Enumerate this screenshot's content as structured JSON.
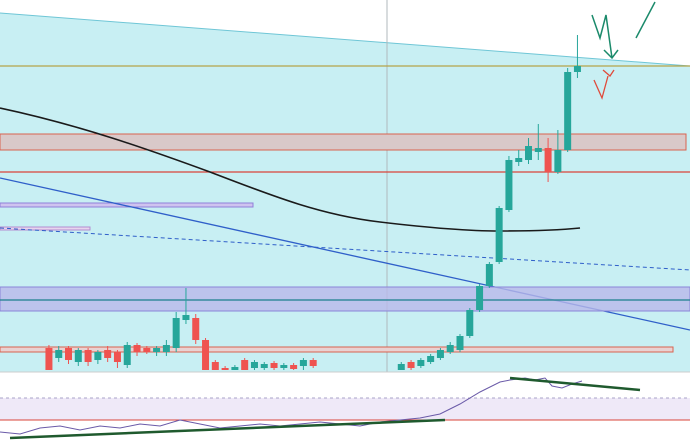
{
  "chart_data": {
    "type": "candlestick",
    "x": [
      4,
      5,
      6,
      7,
      8,
      9,
      10,
      11,
      12,
      13,
      14,
      15,
      16,
      17,
      18,
      19,
      20,
      21,
      22,
      23,
      24,
      25,
      26,
      27,
      28,
      29,
      30,
      31,
      40,
      41,
      42,
      43,
      44,
      45,
      46,
      47,
      48,
      49,
      50,
      51,
      52,
      53,
      54,
      55,
      56,
      57,
      58
    ],
    "open": [
      22,
      12,
      22,
      8,
      20,
      10,
      20,
      18,
      5,
      25,
      22,
      18,
      18,
      22,
      50,
      52,
      30,
      8,
      2,
      0,
      10,
      2,
      2,
      7,
      2,
      5,
      4,
      10,
      0,
      8,
      4,
      8,
      12,
      18,
      20,
      34,
      60,
      84,
      108,
      160,
      208,
      210,
      218,
      222,
      198,
      220,
      298
    ],
    "high": [
      25,
      24,
      24,
      22,
      22,
      20,
      24,
      20,
      28,
      27,
      24,
      24,
      30,
      58,
      82,
      56,
      32,
      10,
      4,
      5,
      12,
      10,
      8,
      9,
      7,
      7,
      12,
      12,
      8,
      10,
      12,
      16,
      22,
      28,
      36,
      62,
      86,
      108,
      164,
      214,
      220,
      232,
      246,
      232,
      240,
      302,
      335
    ],
    "low": [
      0,
      8,
      6,
      4,
      4,
      6,
      8,
      2,
      2,
      14,
      16,
      14,
      14,
      18,
      46,
      26,
      0,
      0,
      0,
      0,
      0,
      0,
      0,
      0,
      0,
      0,
      0,
      2,
      0,
      0,
      2,
      6,
      10,
      16,
      18,
      32,
      58,
      82,
      106,
      158,
      204,
      206,
      210,
      188,
      196,
      218,
      292
    ],
    "close": [
      0,
      20,
      10,
      20,
      8,
      18,
      12,
      8,
      25,
      18,
      18,
      22,
      25,
      52,
      55,
      30,
      0,
      0,
      0,
      3,
      0,
      8,
      6,
      2,
      5,
      1,
      10,
      4,
      6,
      2,
      10,
      14,
      20,
      25,
      34,
      60,
      84,
      106,
      162,
      210,
      212,
      224,
      222,
      198,
      220,
      298,
      304
    ],
    "xlim": [
      -1,
      69.5
    ],
    "ylim": [
      0,
      370
    ],
    "up_color": "#26a69a",
    "down_color": "#ef5350"
  }
}
